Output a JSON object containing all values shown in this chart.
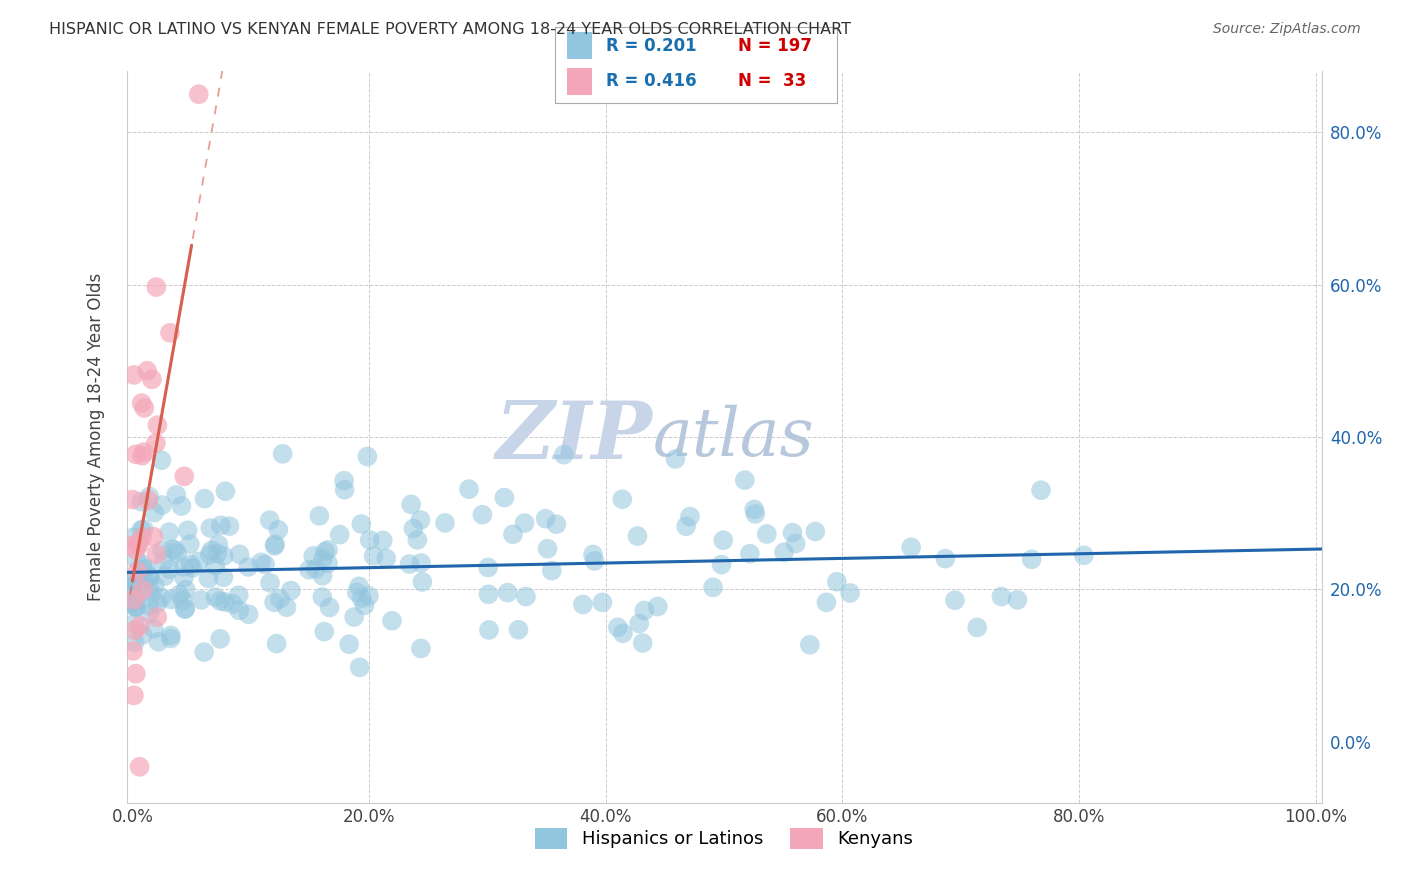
{
  "title": "HISPANIC OR LATINO VS KENYAN FEMALE POVERTY AMONG 18-24 YEAR OLDS CORRELATION CHART",
  "source": "Source: ZipAtlas.com",
  "ylabel": "Female Poverty Among 18-24 Year Olds",
  "xlim": [
    -0.005,
    1.005
  ],
  "ylim": [
    -0.08,
    0.88
  ],
  "xticks": [
    0.0,
    0.2,
    0.4,
    0.6,
    0.8,
    1.0
  ],
  "xtick_labels": [
    "0.0%",
    "20.0%",
    "40.0%",
    "60.0%",
    "80.0%",
    "100.0%"
  ],
  "ytick_positions": [
    0.0,
    0.2,
    0.4,
    0.6,
    0.8
  ],
  "ytick_labels": [
    "0.0%",
    "20.0%",
    "40.0%",
    "60.0%",
    "80.0%"
  ],
  "blue_color": "#92c5de",
  "pink_color": "#f4a7b9",
  "blue_line_color": "#2166ac",
  "pink_line_color": "#d6604d",
  "watermark_zip_color": "#c8d4e8",
  "watermark_atlas_color": "#b8c8dc",
  "R_blue": 0.201,
  "N_blue": 197,
  "R_pink": 0.416,
  "N_pink": 33,
  "legend_R_color": "#1a6faf",
  "legend_N_color": "#cc0000",
  "blue_seed": 42,
  "pink_seed": 99
}
